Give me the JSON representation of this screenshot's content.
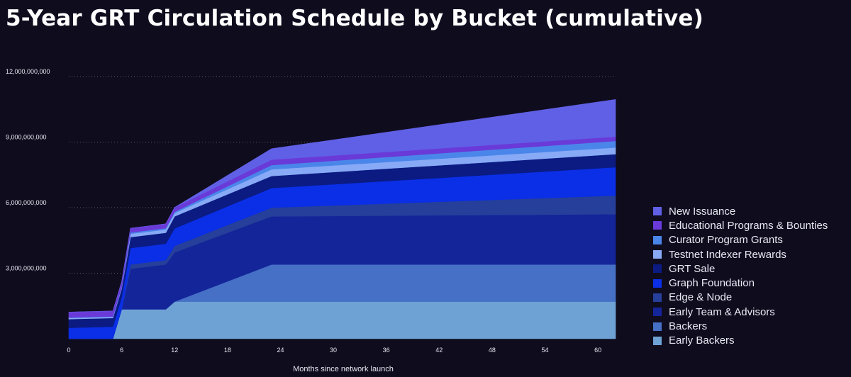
{
  "chart_data": {
    "type": "area",
    "stacked": true,
    "title": "5-Year GRT Circulation Schedule by Bucket (cumulative)",
    "xlabel": "Months since network launch",
    "ylabel": "",
    "xlim": [
      0,
      62
    ],
    "ylim": [
      0,
      12000000000
    ],
    "x_ticks": [
      "0",
      "6",
      "12",
      "18",
      "24",
      "30",
      "36",
      "42",
      "48",
      "54",
      "60"
    ],
    "y_ticks": [
      "3,000,000,000",
      "6,000,000,000",
      "9,000,000,000",
      "12,000,000,000"
    ],
    "grid": "horizontal dotted",
    "legend_position": "right",
    "x": [
      0,
      5,
      6,
      7,
      10,
      11,
      12,
      23,
      62
    ],
    "series": [
      {
        "name": "Early Backers",
        "color": "#6ea2d4",
        "values": [
          0,
          0,
          1350000000,
          1350000000,
          1350000000,
          1350000000,
          1700000000,
          1700000000,
          1700000000
        ]
      },
      {
        "name": "Backers",
        "color": "#4670c6",
        "values": [
          0,
          0,
          0,
          0,
          0,
          0,
          0,
          1700000000,
          1700000000
        ]
      },
      {
        "name": "Early Team & Advisors",
        "color": "#14259a",
        "values": [
          0,
          0,
          0,
          1850000000,
          2000000000,
          2050000000,
          2250000000,
          2200000000,
          2300000000
        ]
      },
      {
        "name": "Edge & Node",
        "color": "#263f9a",
        "values": [
          0,
          0,
          0,
          200000000,
          200000000,
          200000000,
          300000000,
          400000000,
          850000000
        ]
      },
      {
        "name": "Graph Foundation",
        "color": "#0a2fe6",
        "values": [
          500000000,
          550000000,
          550000000,
          750000000,
          750000000,
          750000000,
          800000000,
          900000000,
          1300000000
        ]
      },
      {
        "name": "GRT Sale",
        "color": "#0b1b82",
        "values": [
          400000000,
          400000000,
          400000000,
          500000000,
          500000000,
          500000000,
          550000000,
          550000000,
          600000000
        ]
      },
      {
        "name": "Testnet Indexer Rewards",
        "color": "#88aaf6",
        "values": [
          50000000,
          50000000,
          50000000,
          150000000,
          150000000,
          150000000,
          150000000,
          300000000,
          300000000
        ]
      },
      {
        "name": "Curator Program Grants",
        "color": "#4a86ea",
        "values": [
          20000000,
          20000000,
          20000000,
          60000000,
          60000000,
          60000000,
          60000000,
          200000000,
          300000000
        ]
      },
      {
        "name": "Educational Programs & Bounties",
        "color": "#6a3ad8",
        "values": [
          250000000,
          250000000,
          250000000,
          200000000,
          200000000,
          200000000,
          200000000,
          250000000,
          200000000
        ]
      },
      {
        "name": "New Issuance",
        "color": "#6060e6",
        "values": [
          0,
          0,
          0,
          0,
          0,
          0,
          0,
          500000000,
          1700000000
        ]
      }
    ]
  }
}
